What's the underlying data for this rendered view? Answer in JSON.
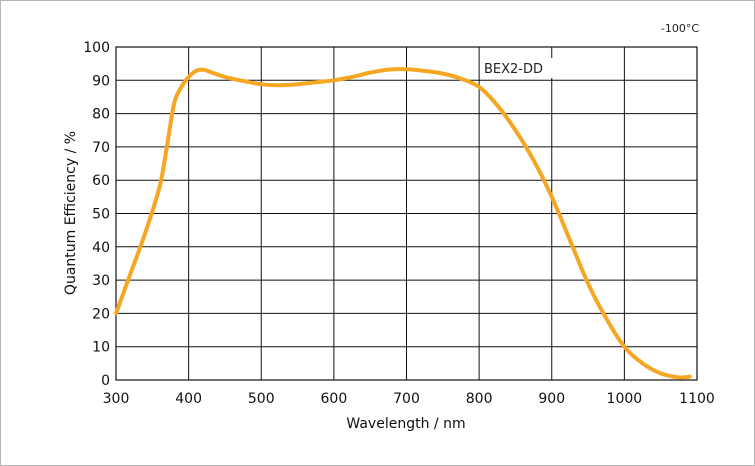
{
  "chart_data": {
    "type": "line",
    "temperature_label": "-100°C",
    "xlabel": "Wavelength / nm",
    "ylabel": "Quantum Efficiency / %",
    "xlim": [
      300,
      1100
    ],
    "ylim": [
      0,
      100
    ],
    "x_ticks": [
      300,
      400,
      500,
      600,
      700,
      800,
      900,
      1000,
      1100
    ],
    "y_ticks": [
      0,
      10,
      20,
      30,
      40,
      50,
      60,
      70,
      80,
      90,
      100
    ],
    "grid": true,
    "series_label": "BEX2-DD",
    "series": [
      {
        "name": "BEX2-DD",
        "color": "#f5a623",
        "x": [
          300,
          320,
          340,
          360,
          370,
          380,
          390,
          400,
          410,
          420,
          430,
          450,
          475,
          500,
          525,
          550,
          575,
          600,
          625,
          650,
          675,
          700,
          725,
          750,
          775,
          800,
          825,
          850,
          875,
          900,
          925,
          950,
          975,
          1000,
          1025,
          1050,
          1075,
          1090
        ],
        "y": [
          20,
          32,
          44,
          58,
          70,
          83,
          88,
          91,
          92.8,
          93.2,
          92.5,
          91,
          89.8,
          88.8,
          88.5,
          88.8,
          89.4,
          90,
          91,
          92.3,
          93.2,
          93.3,
          92.8,
          92,
          90.5,
          88,
          82.5,
          75,
          66,
          55,
          42,
          29,
          18.5,
          10,
          5,
          2,
          0.8,
          1
        ]
      }
    ]
  }
}
